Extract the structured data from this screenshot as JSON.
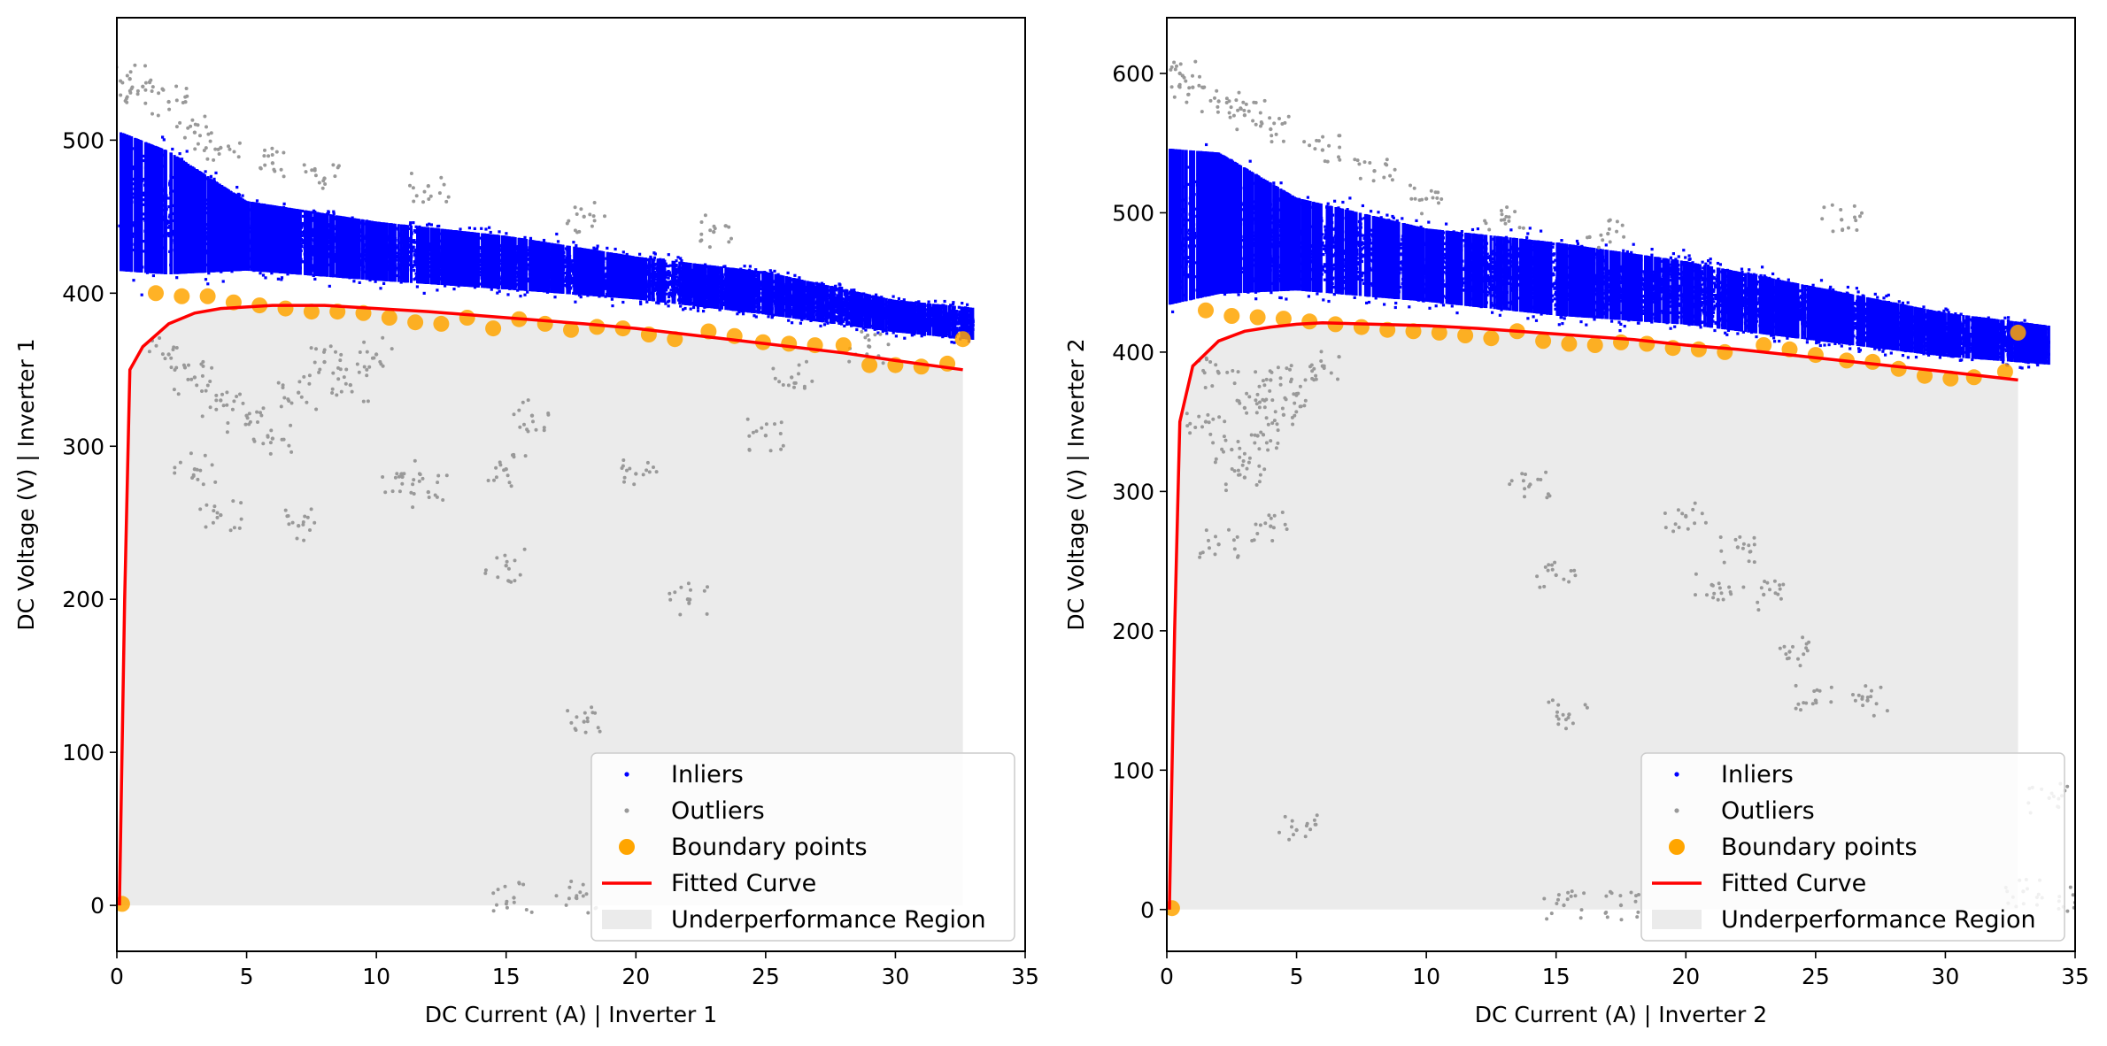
{
  "chart_data": [
    {
      "type": "scatter",
      "panel": "Inverter 1",
      "xlabel": "DC Current (A) | Inverter 1",
      "ylabel": "DC Voltage (V) | Inverter 1",
      "xlim": [
        0,
        35
      ],
      "ylim": [
        -30,
        580
      ],
      "xticks": [
        0,
        5,
        10,
        15,
        20,
        25,
        30,
        35
      ],
      "yticks": [
        0,
        100,
        200,
        300,
        400,
        500
      ],
      "grid": false,
      "legend_position": "lower-right",
      "colors": {
        "inliers": "#0000ff",
        "outliers": "#999999",
        "boundary": "#ffa500",
        "curve": "#ff0000",
        "region": "#ebebeb"
      },
      "series": [
        {
          "name": "Inliers",
          "kind": "scatter-cloud",
          "upper_band": [
            [
              0.1,
              525
            ],
            [
              2,
              510
            ],
            [
              5,
              470
            ],
            [
              10,
              455
            ],
            [
              15,
              445
            ],
            [
              20,
              430
            ],
            [
              25,
              420
            ],
            [
              30,
              400
            ],
            [
              33,
              395
            ]
          ],
          "lower_band": [
            [
              0.1,
              395
            ],
            [
              2,
              395
            ],
            [
              5,
              405
            ],
            [
              10,
              400
            ],
            [
              15,
              395
            ],
            [
              20,
              390
            ],
            [
              25,
              380
            ],
            [
              30,
              370
            ],
            [
              33,
              365
            ]
          ]
        },
        {
          "name": "Outliers",
          "kind": "scatter-sparse",
          "points": [
            [
              0.5,
              540
            ],
            [
              1,
              535
            ],
            [
              2,
              525
            ],
            [
              3,
              505
            ],
            [
              4,
              495
            ],
            [
              6,
              485
            ],
            [
              8,
              475
            ],
            [
              12,
              470
            ],
            [
              18,
              450
            ],
            [
              23,
              440
            ],
            [
              2,
              360
            ],
            [
              3,
              345
            ],
            [
              4,
              330
            ],
            [
              5,
              320
            ],
            [
              6,
              305
            ],
            [
              7,
              335
            ],
            [
              8,
              355
            ],
            [
              9,
              340
            ],
            [
              10,
              360
            ],
            [
              3,
              285
            ],
            [
              4,
              255
            ],
            [
              7,
              248
            ],
            [
              11,
              280
            ],
            [
              12,
              270
            ],
            [
              15,
              285
            ],
            [
              20,
              282
            ],
            [
              25,
              307
            ],
            [
              16,
              320
            ],
            [
              15,
              222
            ],
            [
              22,
              200
            ],
            [
              18,
              120
            ],
            [
              15.3,
              5
            ],
            [
              17.7,
              5
            ],
            [
              29,
              365
            ],
            [
              26,
              345
            ]
          ]
        },
        {
          "name": "Boundary points",
          "kind": "markers",
          "points": [
            [
              0.2,
              1
            ],
            [
              1.5,
              400
            ],
            [
              2.5,
              398
            ],
            [
              3.5,
              398
            ],
            [
              4.5,
              394
            ],
            [
              5.5,
              392
            ],
            [
              6.5,
              390
            ],
            [
              7.5,
              388
            ],
            [
              8.5,
              388
            ],
            [
              9.5,
              387
            ],
            [
              10.5,
              384
            ],
            [
              11.5,
              381
            ],
            [
              12.5,
              380
            ],
            [
              13.5,
              384
            ],
            [
              14.5,
              377
            ],
            [
              15.5,
              383
            ],
            [
              16.5,
              380
            ],
            [
              17.5,
              376
            ],
            [
              18.5,
              378
            ],
            [
              19.5,
              377
            ],
            [
              20.5,
              373
            ],
            [
              21.5,
              370
            ],
            [
              22.8,
              375
            ],
            [
              23.8,
              372
            ],
            [
              24.9,
              368
            ],
            [
              25.9,
              367
            ],
            [
              26.9,
              366
            ],
            [
              28,
              366
            ],
            [
              29,
              353
            ],
            [
              30,
              353
            ],
            [
              31,
              352
            ],
            [
              32,
              354
            ],
            [
              32.6,
              370
            ]
          ]
        },
        {
          "name": "Fitted Curve",
          "kind": "line",
          "points": [
            [
              0.1,
              0
            ],
            [
              0.3,
              200
            ],
            [
              0.5,
              350
            ],
            [
              1,
              365
            ],
            [
              2,
              380
            ],
            [
              3,
              387
            ],
            [
              4,
              390
            ],
            [
              5,
              391
            ],
            [
              6,
              392
            ],
            [
              8,
              392
            ],
            [
              10,
              390
            ],
            [
              12,
              388
            ],
            [
              15,
              384
            ],
            [
              18,
              380
            ],
            [
              20,
              377
            ],
            [
              22,
              373
            ],
            [
              25,
              367
            ],
            [
              28,
              361
            ],
            [
              30,
              356
            ],
            [
              32.6,
              350
            ]
          ]
        },
        {
          "name": "Underperformance Region",
          "kind": "area",
          "x_extent": [
            0.1,
            32.6
          ]
        }
      ]
    },
    {
      "type": "scatter",
      "panel": "Inverter 2",
      "xlabel": "DC Current (A) | Inverter 2",
      "ylabel": "DC Voltage (V) | Inverter 2",
      "xlim": [
        0,
        35
      ],
      "ylim": [
        -30,
        640
      ],
      "xticks": [
        0,
        5,
        10,
        15,
        20,
        25,
        30,
        35
      ],
      "yticks": [
        0,
        100,
        200,
        300,
        400,
        500,
        600
      ],
      "grid": false,
      "legend_position": "lower-right",
      "colors": {
        "inliers": "#0000ff",
        "outliers": "#999999",
        "boundary": "#ffa500",
        "curve": "#ff0000",
        "region": "#ebebeb"
      },
      "series": [
        {
          "name": "Inliers",
          "kind": "scatter-cloud",
          "upper_band": [
            [
              0.1,
              570
            ],
            [
              2,
              565
            ],
            [
              5,
              525
            ],
            [
              10,
              500
            ],
            [
              15,
              490
            ],
            [
              20,
              475
            ],
            [
              25,
              455
            ],
            [
              30,
              435
            ],
            [
              34,
              425
            ]
          ],
          "lower_band": [
            [
              0.1,
              410
            ],
            [
              2,
              420
            ],
            [
              5,
              430
            ],
            [
              10,
              425
            ],
            [
              15,
              415
            ],
            [
              20,
              410
            ],
            [
              25,
              400
            ],
            [
              30,
              390
            ],
            [
              34,
              385
            ]
          ]
        },
        {
          "name": "Outliers",
          "kind": "scatter-sparse",
          "points": [
            [
              0.5,
              600
            ],
            [
              1,
              590
            ],
            [
              2,
              580
            ],
            [
              3,
              570
            ],
            [
              4,
              560
            ],
            [
              6,
              545
            ],
            [
              8,
              530
            ],
            [
              10,
              510
            ],
            [
              13,
              495
            ],
            [
              17,
              485
            ],
            [
              2,
              385
            ],
            [
              3,
              360
            ],
            [
              4,
              380
            ],
            [
              5,
              370
            ],
            [
              3.5,
              340
            ],
            [
              2.5,
              330
            ],
            [
              4.5,
              355
            ],
            [
              6,
              390
            ],
            [
              1.5,
              350
            ],
            [
              3,
              310
            ],
            [
              2,
              262
            ],
            [
              4,
              275
            ],
            [
              5,
              57
            ],
            [
              14,
              305
            ],
            [
              15,
              240
            ],
            [
              20,
              282
            ],
            [
              21,
              233
            ],
            [
              22,
              260
            ],
            [
              23,
              226
            ],
            [
              24,
              185
            ],
            [
              25,
              150
            ],
            [
              26,
              495
            ],
            [
              27,
              150
            ],
            [
              15.5,
              140
            ],
            [
              15.3,
              3
            ],
            [
              17.5,
              3
            ],
            [
              33,
              13
            ],
            [
              34,
              80
            ],
            [
              35,
              5
            ]
          ]
        },
        {
          "name": "Boundary points",
          "kind": "markers",
          "points": [
            [
              0.2,
              1
            ],
            [
              1.5,
              430
            ],
            [
              2.5,
              426
            ],
            [
              3.5,
              425
            ],
            [
              4.5,
              424
            ],
            [
              5.5,
              422
            ],
            [
              6.5,
              420
            ],
            [
              7.5,
              418
            ],
            [
              8.5,
              416
            ],
            [
              9.5,
              415
            ],
            [
              10.5,
              414
            ],
            [
              11.5,
              412
            ],
            [
              12.5,
              410
            ],
            [
              13.5,
              415
            ],
            [
              14.5,
              408
            ],
            [
              15.5,
              406
            ],
            [
              16.5,
              405
            ],
            [
              17.5,
              407
            ],
            [
              18.5,
              406
            ],
            [
              19.5,
              403
            ],
            [
              20.5,
              402
            ],
            [
              21.5,
              400
            ],
            [
              23,
              405
            ],
            [
              24,
              402
            ],
            [
              25,
              398
            ],
            [
              26.2,
              394
            ],
            [
              27.2,
              393
            ],
            [
              28.2,
              388
            ],
            [
              29.2,
              383
            ],
            [
              30.2,
              381
            ],
            [
              31.1,
              382
            ],
            [
              32.3,
              386
            ],
            [
              32.8,
              414
            ]
          ]
        },
        {
          "name": "Fitted Curve",
          "kind": "line",
          "points": [
            [
              0.1,
              0
            ],
            [
              0.3,
              200
            ],
            [
              0.5,
              350
            ],
            [
              1,
              390
            ],
            [
              2,
              408
            ],
            [
              3,
              415
            ],
            [
              4,
              418
            ],
            [
              5,
              420
            ],
            [
              6,
              421
            ],
            [
              8,
              420
            ],
            [
              10,
              419
            ],
            [
              12,
              417
            ],
            [
              15,
              413
            ],
            [
              18,
              409
            ],
            [
              20,
              405
            ],
            [
              22,
              402
            ],
            [
              25,
              396
            ],
            [
              28,
              390
            ],
            [
              30,
              386
            ],
            [
              32.8,
              380
            ]
          ]
        },
        {
          "name": "Underperformance Region",
          "kind": "area",
          "x_extent": [
            0.1,
            32.8
          ]
        }
      ]
    }
  ]
}
